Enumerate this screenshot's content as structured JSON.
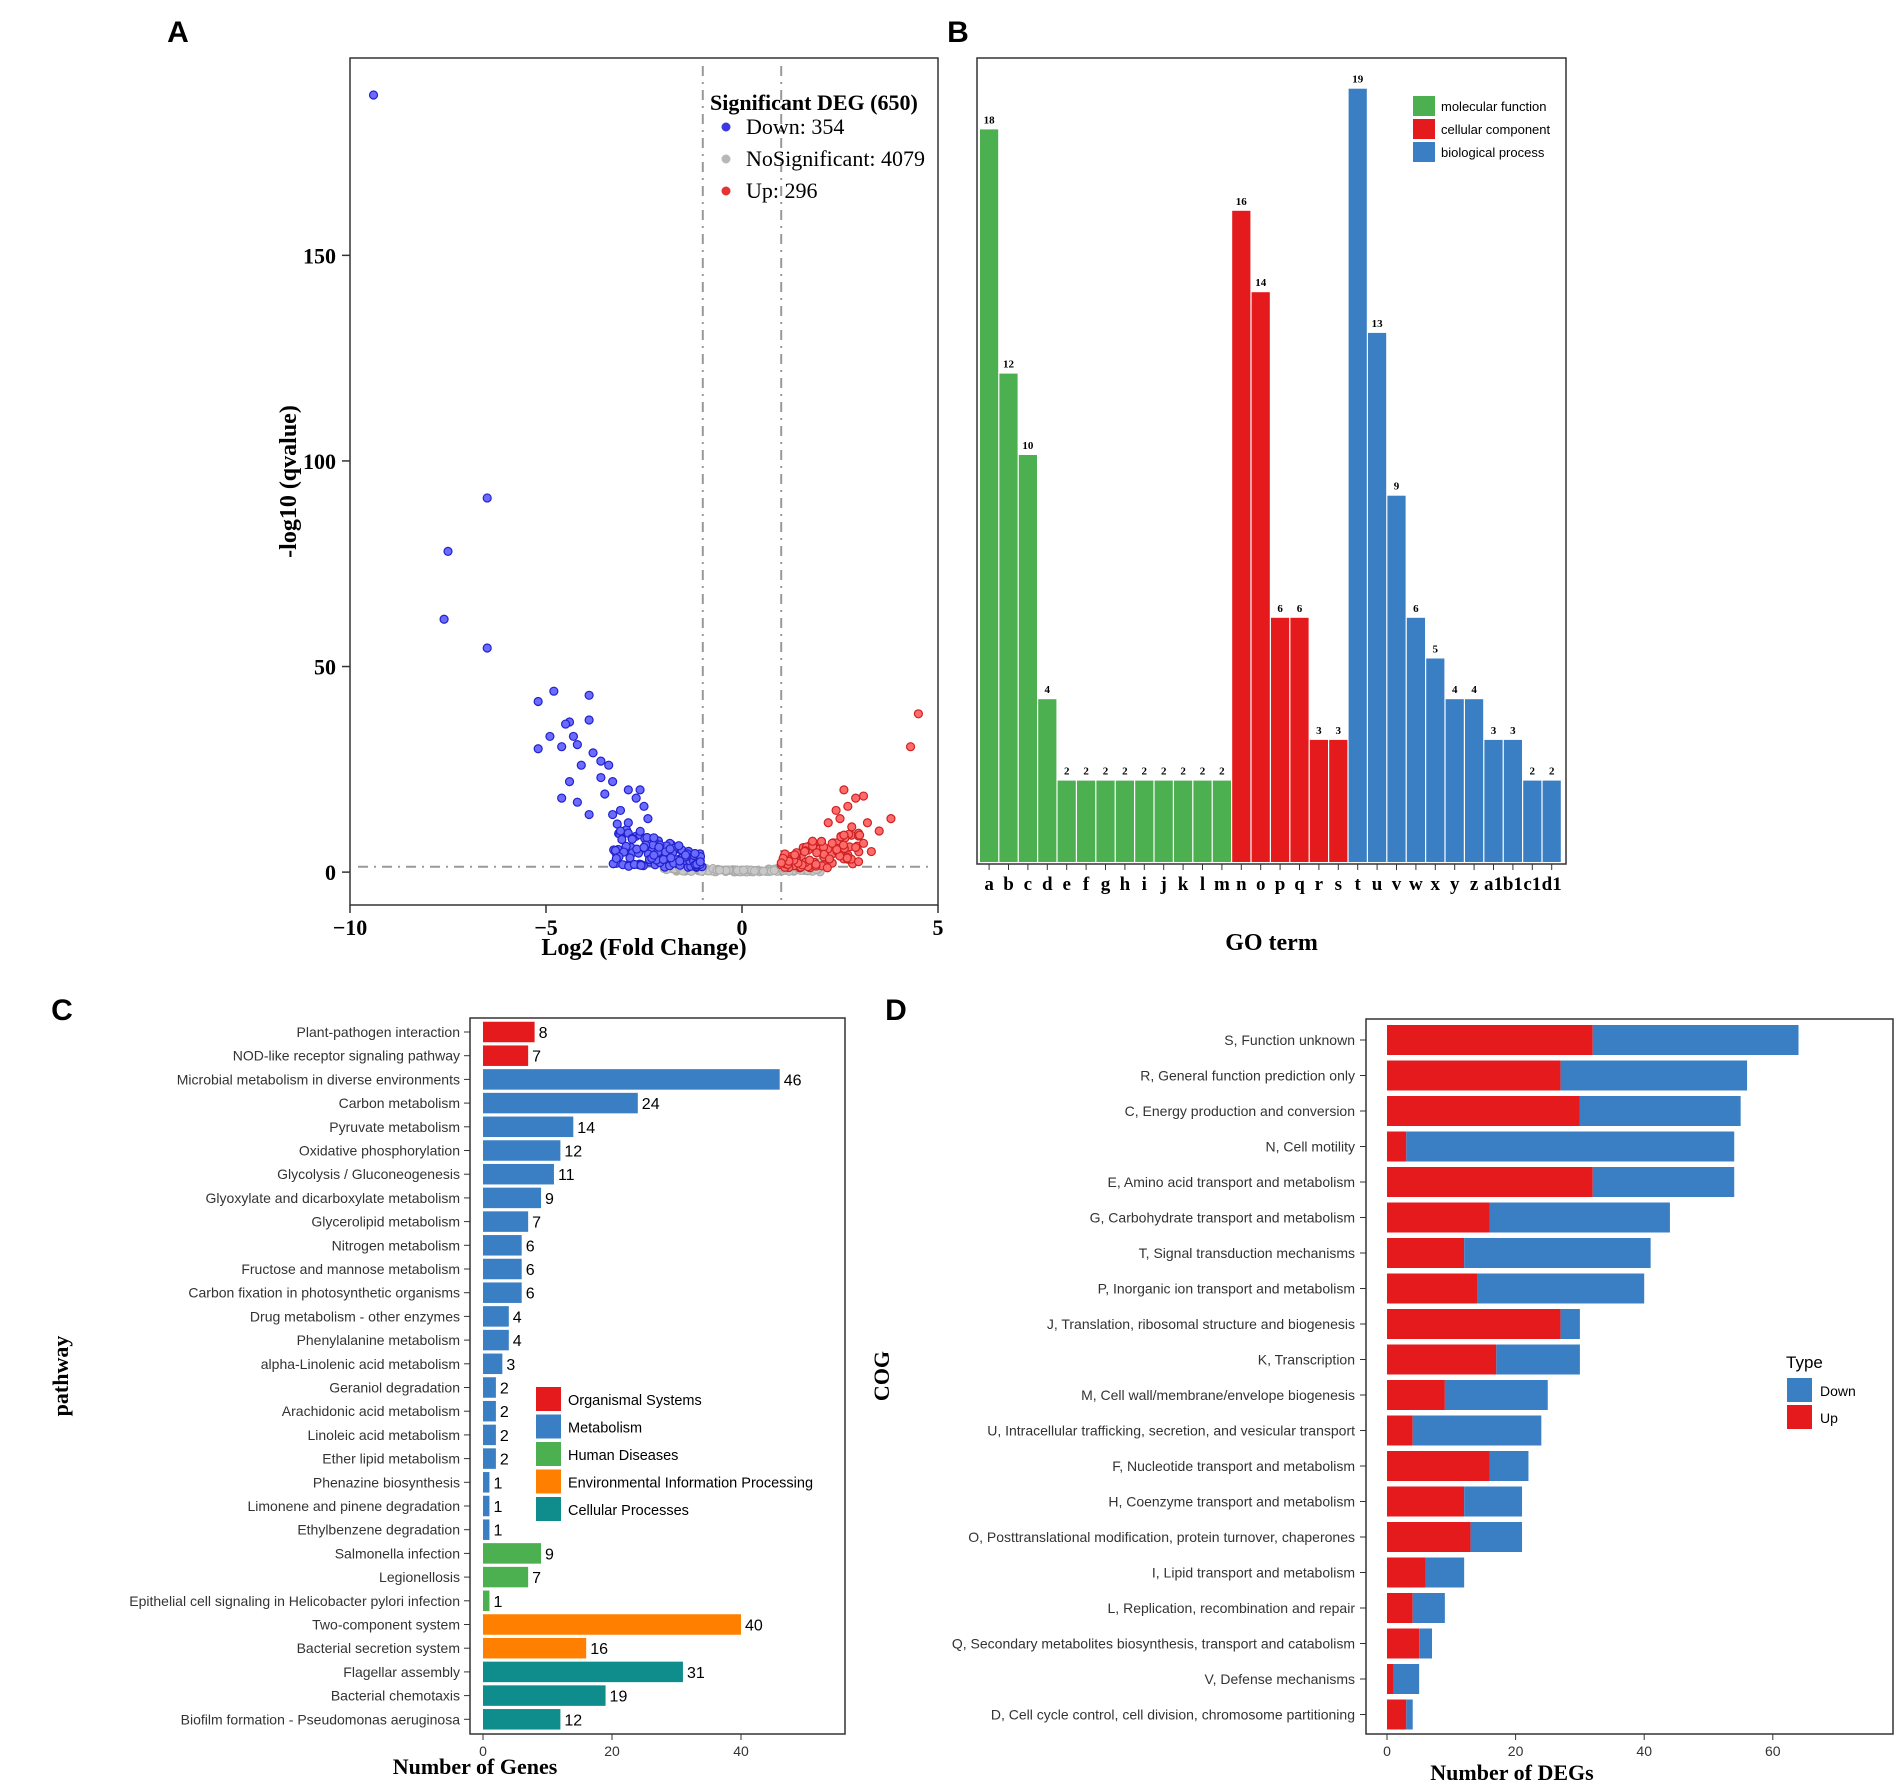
{
  "panel_labels": [
    "A",
    "B",
    "C",
    "D"
  ],
  "chart_data": [
    {
      "panel": "A",
      "type": "scatter",
      "subtype": "volcano",
      "xlabel": "Log2 (Fold Change)",
      "ylabel": "-log10 (qvalue)",
      "xlim": [
        -10,
        5
      ],
      "ylim": [
        -8,
        198
      ],
      "xticks": [
        -10,
        -5,
        0,
        5
      ],
      "yticks": [
        0,
        50,
        100,
        150
      ],
      "xtick_labels": [
        "−10",
        "−5",
        "0",
        "5"
      ],
      "ytick_labels": [
        "0",
        "50",
        "100",
        "150"
      ],
      "vlines": [
        -1,
        1
      ],
      "hline": 1.3,
      "legend_title": "Significant DEG (650)",
      "legend": [
        {
          "label": "Down: 354",
          "color": "#3a3ae0"
        },
        {
          "label": "NoSignificant: 4079",
          "color": "#b8b8b8"
        },
        {
          "label": "Up: 296",
          "color": "#e63333"
        }
      ],
      "down_points": [
        [
          -9.4,
          189
        ],
        [
          -6.5,
          91
        ],
        [
          -7.5,
          78
        ],
        [
          -7.6,
          61.5
        ],
        [
          -6.5,
          54.5
        ],
        [
          -5.2,
          41.5
        ],
        [
          -4.8,
          44
        ],
        [
          -4.4,
          36.5
        ],
        [
          -4.5,
          36
        ],
        [
          -4.3,
          33
        ],
        [
          -4.9,
          33
        ],
        [
          -5.2,
          30
        ],
        [
          -4.6,
          30.5
        ],
        [
          -4.2,
          31
        ],
        [
          -3.9,
          43
        ],
        [
          -3.9,
          37
        ],
        [
          -3.8,
          29
        ],
        [
          -3.6,
          27
        ],
        [
          -3.6,
          23
        ],
        [
          -3.4,
          26
        ],
        [
          -3.3,
          22
        ],
        [
          -4.1,
          26
        ],
        [
          -4.4,
          22
        ],
        [
          -4.6,
          18
        ],
        [
          -4.2,
          17
        ],
        [
          -3.9,
          14
        ],
        [
          -3.3,
          14
        ],
        [
          -3.5,
          19
        ],
        [
          -3.1,
          15
        ],
        [
          -2.9,
          20
        ],
        [
          -2.7,
          18
        ],
        [
          -2.6,
          20
        ],
        [
          -2.5,
          16
        ],
        [
          -2.4,
          13
        ],
        [
          -2.9,
          12
        ],
        [
          -3.1,
          10
        ],
        [
          -2.8,
          8
        ],
        [
          -2.5,
          6
        ]
      ],
      "down_cloud": {
        "x_range": [
          -3.3,
          -1.0
        ],
        "y_max": 13,
        "count": 120
      },
      "up_points": [
        [
          4.5,
          38.5
        ],
        [
          4.3,
          30.5
        ],
        [
          2.6,
          20
        ],
        [
          2.9,
          18
        ],
        [
          3.1,
          18.5
        ],
        [
          2.7,
          16
        ],
        [
          2.4,
          15
        ],
        [
          2.5,
          13
        ],
        [
          2.8,
          11
        ],
        [
          3.2,
          12
        ],
        [
          3.0,
          9
        ],
        [
          2.2,
          12
        ],
        [
          2.6,
          9
        ],
        [
          3.8,
          13
        ],
        [
          3.5,
          10
        ],
        [
          2.3,
          7
        ],
        [
          3.1,
          7
        ],
        [
          2.9,
          6
        ],
        [
          3.3,
          5
        ],
        [
          1.8,
          7.5
        ],
        [
          1.6,
          5
        ]
      ],
      "up_cloud": {
        "x_range": [
          1.0,
          3.0
        ],
        "y_max": 9,
        "count": 90
      },
      "ns_cloud": {
        "x_range": [
          -2.0,
          2.0
        ],
        "count": 220
      }
    },
    {
      "panel": "B",
      "type": "bar",
      "xlabel": "GO term",
      "ylabel": "",
      "categories": [
        "a",
        "b",
        "c",
        "d",
        "e",
        "f",
        "g",
        "h",
        "i",
        "j",
        "k",
        "l",
        "m",
        "n",
        "o",
        "p",
        "q",
        "r",
        "s",
        "t",
        "u",
        "v",
        "w",
        "x",
        "y",
        "z",
        "a1",
        "b1",
        "c1",
        "d1"
      ],
      "values": [
        18,
        12,
        10,
        4,
        2,
        2,
        2,
        2,
        2,
        2,
        2,
        2,
        2,
        16,
        14,
        6,
        6,
        3,
        3,
        19,
        13,
        9,
        6,
        5,
        4,
        4,
        3,
        3,
        2,
        2
      ],
      "groups": [
        "mf",
        "mf",
        "mf",
        "mf",
        "mf",
        "mf",
        "mf",
        "mf",
        "mf",
        "mf",
        "mf",
        "mf",
        "mf",
        "cc",
        "cc",
        "cc",
        "cc",
        "cc",
        "cc",
        "bp",
        "bp",
        "bp",
        "bp",
        "bp",
        "bp",
        "bp",
        "bp",
        "bp",
        "bp",
        "bp"
      ],
      "legend": [
        {
          "key": "mf",
          "label": "molecular function",
          "color": "#4caf50"
        },
        {
          "key": "cc",
          "label": "cellular component",
          "color": "#e41a1c"
        },
        {
          "key": "bp",
          "label": "biological process",
          "color": "#3a7fc4"
        }
      ],
      "ylim": [
        0,
        20
      ]
    },
    {
      "panel": "C",
      "type": "bar",
      "orientation": "horizontal",
      "xlabel": "Number of Genes",
      "ylabel": "pathway",
      "xlim": [
        0,
        55
      ],
      "xticks": [
        0,
        20,
        40
      ],
      "categories": [
        "Plant-pathogen interaction",
        "NOD-like receptor signaling pathway",
        "Microbial metabolism in diverse environments",
        "Carbon metabolism",
        "Pyruvate metabolism",
        "Oxidative phosphorylation",
        "Glycolysis / Gluconeogenesis",
        "Glyoxylate and dicarboxylate metabolism",
        "Glycerolipid metabolism",
        "Nitrogen metabolism",
        "Fructose and mannose metabolism",
        "Carbon fixation in photosynthetic organisms",
        "Drug metabolism - other enzymes",
        "Phenylalanine metabolism",
        "alpha-Linolenic acid metabolism",
        "Geraniol degradation",
        "Arachidonic acid metabolism",
        "Linoleic acid metabolism",
        "Ether lipid metabolism",
        "Phenazine biosynthesis",
        "Limonene and pinene degradation",
        "Ethylbenzene degradation",
        "Salmonella infection",
        "Legionellosis",
        "Epithelial cell signaling in Helicobacter pylori infection",
        "Two-component system",
        "Bacterial secretion system",
        "Flagellar assembly",
        "Bacterial chemotaxis",
        "Biofilm formation - Pseudomonas aeruginosa"
      ],
      "values": [
        8,
        7,
        46,
        24,
        14,
        12,
        11,
        9,
        7,
        6,
        6,
        6,
        4,
        4,
        3,
        2,
        2,
        2,
        2,
        1,
        1,
        1,
        9,
        7,
        1,
        40,
        16,
        31,
        19,
        12
      ],
      "groups": [
        "os",
        "os",
        "met",
        "met",
        "met",
        "met",
        "met",
        "met",
        "met",
        "met",
        "met",
        "met",
        "met",
        "met",
        "met",
        "met",
        "met",
        "met",
        "met",
        "met",
        "met",
        "met",
        "hd",
        "hd",
        "hd",
        "eip",
        "eip",
        "cp",
        "cp",
        "cp"
      ],
      "legend": [
        {
          "key": "os",
          "label": "Organismal Systems",
          "color": "#e41a1c"
        },
        {
          "key": "met",
          "label": "Metabolism",
          "color": "#3a7fc4"
        },
        {
          "key": "hd",
          "label": "Human Diseases",
          "color": "#4caf50"
        },
        {
          "key": "eip",
          "label": "Environmental Information Processing",
          "color": "#ff8000"
        },
        {
          "key": "cp",
          "label": "Cellular Processes",
          "color": "#0f8c8c"
        }
      ]
    },
    {
      "panel": "D",
      "type": "bar",
      "orientation": "horizontal",
      "stacked": true,
      "xlabel": "Number of DEGs",
      "ylabel": "COG",
      "xlim": [
        0,
        78
      ],
      "xticks": [
        0,
        20,
        40,
        60
      ],
      "categories": [
        "S, Function unknown",
        "R, General function prediction only",
        "C, Energy production and conversion",
        "N, Cell motility",
        "E, Amino acid transport and metabolism",
        "G, Carbohydrate transport and metabolism",
        "T, Signal transduction mechanisms",
        "P, Inorganic ion transport and metabolism",
        "J, Translation, ribosomal structure and biogenesis",
        "K, Transcription",
        "M, Cell wall/membrane/envelope biogenesis",
        "U, Intracellular trafficking, secretion, and vesicular transport",
        "F, Nucleotide transport and metabolism",
        "H, Coenzyme transport and metabolism",
        "O, Posttranslational modification, protein turnover, chaperones",
        "I, Lipid transport and metabolism",
        "L, Replication, recombination and repair",
        "Q, Secondary metabolites biosynthesis, transport and catabolism",
        "V, Defense mechanisms",
        "D, Cell cycle control, cell division, chromosome partitioning"
      ],
      "series": [
        {
          "name": "Up",
          "color": "#e41a1c",
          "values": [
            32,
            27,
            30,
            3,
            32,
            16,
            12,
            14,
            27,
            17,
            9,
            4,
            16,
            12,
            13,
            6,
            4,
            5,
            1,
            3
          ]
        },
        {
          "name": "Down",
          "color": "#3a7fc4",
          "values": [
            32,
            29,
            25,
            51,
            22,
            28,
            29,
            26,
            3,
            13,
            16,
            20,
            6,
            9,
            8,
            6,
            5,
            2,
            4,
            1
          ]
        }
      ],
      "legend_title": "Type",
      "legend": [
        {
          "label": "Down",
          "color": "#3a7fc4"
        },
        {
          "label": "Up",
          "color": "#e41a1c"
        }
      ]
    }
  ]
}
